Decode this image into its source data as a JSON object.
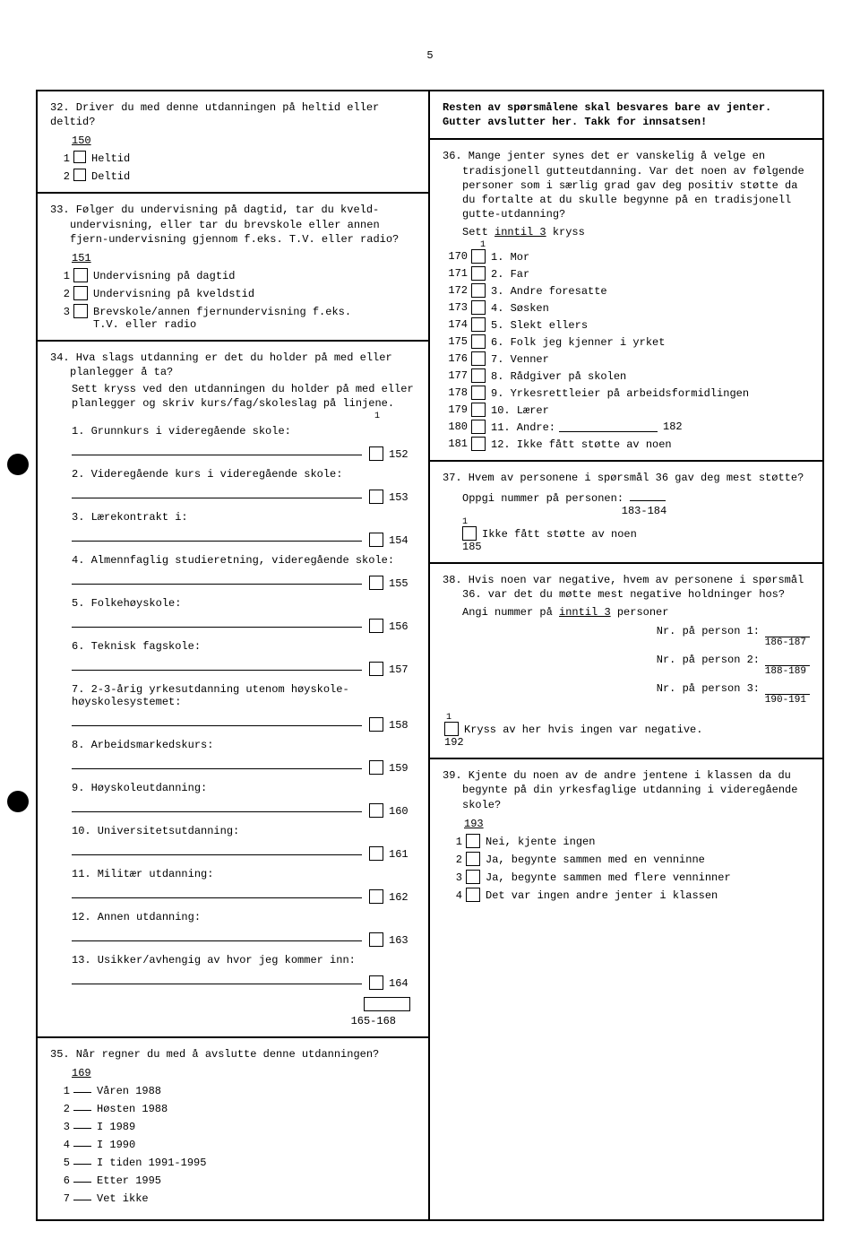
{
  "page_number": "5",
  "q32": {
    "text": "32. Driver du med denne utdanningen på heltid eller deltid?",
    "code": "150",
    "opts": [
      {
        "n": "1",
        "label": "Heltid"
      },
      {
        "n": "2",
        "label": "Deltid"
      }
    ]
  },
  "q33": {
    "text": "33. Følger du undervisning på dagtid, tar du kveld-undervisning, eller tar du brevskole eller annen fjern-undervisning gjennom f.eks. T.V. eller radio?",
    "code": "151",
    "opts": [
      {
        "n": "1",
        "label": "Undervisning på dagtid"
      },
      {
        "n": "2",
        "label": "Undervisning på kveldstid"
      },
      {
        "n": "3",
        "label": "Brevskole/annen fjernundervisning f.eks. T.V. eller radio"
      }
    ]
  },
  "q34": {
    "text": "34. Hva slags utdanning er det du holder på med eller planlegger å ta?",
    "sub": "Sett kryss ved den utdanningen du holder på med eller planlegger og skriv kurs/fag/skoleslag på linjene.",
    "tiny": "1",
    "items": [
      {
        "n": "1.",
        "label": "Grunnkurs i videregående skole:",
        "code": "152"
      },
      {
        "n": "2.",
        "label": "Videregående kurs i videregående skole:",
        "code": "153"
      },
      {
        "n": "3.",
        "label": "Lærekontrakt i:",
        "code": "154"
      },
      {
        "n": "4.",
        "label": "Almennfaglig studieretning, videregående skole:",
        "code": "155"
      },
      {
        "n": "5.",
        "label": "Folkehøyskole:",
        "code": "156"
      },
      {
        "n": "6.",
        "label": "Teknisk fagskole:",
        "code": "157"
      },
      {
        "n": "7.",
        "label": "2-3-årig yrkesutdanning utenom høyskole-høyskolesystemet:",
        "code": "158"
      },
      {
        "n": "8.",
        "label": "Arbeidsmarkedskurs:",
        "code": "159"
      },
      {
        "n": "9.",
        "label": "Høyskoleutdanning:",
        "code": "160"
      },
      {
        "n": "10.",
        "label": "Universitetsutdanning:",
        "code": "161"
      },
      {
        "n": "11.",
        "label": "Militær utdanning:",
        "code": "162"
      },
      {
        "n": "12.",
        "label": "Annen utdanning:",
        "code": "163"
      },
      {
        "n": "13.",
        "label": "Usikker/avhengig av hvor jeg kommer inn:",
        "code": "164"
      }
    ],
    "footer": "165-168"
  },
  "q35": {
    "text": "35. Når regner du med å avslutte denne utdanningen?",
    "code": "169",
    "opts": [
      {
        "n": "1",
        "label": "Våren 1988"
      },
      {
        "n": "2",
        "label": "Høsten 1988"
      },
      {
        "n": "3",
        "label": "I 1989"
      },
      {
        "n": "4",
        "label": "I 1990"
      },
      {
        "n": "5",
        "label": "I tiden 1991-1995"
      },
      {
        "n": "6",
        "label": "Etter 1995"
      },
      {
        "n": "7",
        "label": "Vet ikke"
      }
    ]
  },
  "intro": {
    "l1": "Resten av spørsmålene skal besvares bare av jenter.",
    "l2": "Gutter avslutter her. Takk for innsatsen!"
  },
  "q36": {
    "text": "36. Mange jenter synes det er vanskelig å velge en tradisjonell gutteutdanning. Var det noen av følgende personer som i særlig grad gav deg positiv støtte da du fortalte at du skulle begynne på en tradisjonell gutte-utdanning?",
    "sub": "Sett inntil 3 kryss",
    "tiny": "1",
    "items": [
      {
        "code": "170",
        "label": "1. Mor"
      },
      {
        "code": "171",
        "label": "2. Far"
      },
      {
        "code": "172",
        "label": "3. Andre foresatte"
      },
      {
        "code": "173",
        "label": "4. Søsken"
      },
      {
        "code": "174",
        "label": "5. Slekt ellers"
      },
      {
        "code": "175",
        "label": "6. Folk jeg kjenner i yrket"
      },
      {
        "code": "176",
        "label": "7. Venner"
      },
      {
        "code": "177",
        "label": "8. Rådgiver på skolen"
      },
      {
        "code": "178",
        "label": "9. Yrkesrettleier på arbeidsformidlingen"
      },
      {
        "code": "179",
        "label": "10. Lærer"
      },
      {
        "code": "180",
        "label": "11. Andre:",
        "extra": "182"
      },
      {
        "code": "181",
        "label": "12. Ikke fått støtte av noen"
      }
    ]
  },
  "q37": {
    "text": "37. Hvem av personene i spørsmål 36 gav deg mest støtte?",
    "sub": "Oppgi nummer på personen:",
    "code": "183-184",
    "box": "Ikke fått støtte av noen",
    "boxcode": "185",
    "tiny": "1"
  },
  "q38": {
    "text": "38. Hvis noen var negative, hvem av personene i spørsmål 36. var det du møtte mest negative holdninger hos?",
    "sub": "Angi nummer på inntil 3 personer",
    "rows": [
      {
        "label": "Nr. på person 1:",
        "code": "186-187"
      },
      {
        "label": "Nr. på person 2:",
        "code": "188-189"
      },
      {
        "label": "Nr. på person 3:",
        "code": "190-191"
      }
    ],
    "tiny": "1",
    "box": "Kryss av her hvis ingen var negative.",
    "boxcode": "192"
  },
  "q39": {
    "text": "39. Kjente du noen av de andre jentene i klassen da du begynte på din yrkesfaglige utdanning i videregående skole?",
    "code": "193",
    "opts": [
      {
        "n": "1",
        "label": "Nei, kjente ingen"
      },
      {
        "n": "2",
        "label": "Ja, begynte sammen med en venninne"
      },
      {
        "n": "3",
        "label": "Ja, begynte sammen med flere venninner"
      },
      {
        "n": "4",
        "label": "Det var ingen andre jenter i klassen"
      }
    ]
  }
}
